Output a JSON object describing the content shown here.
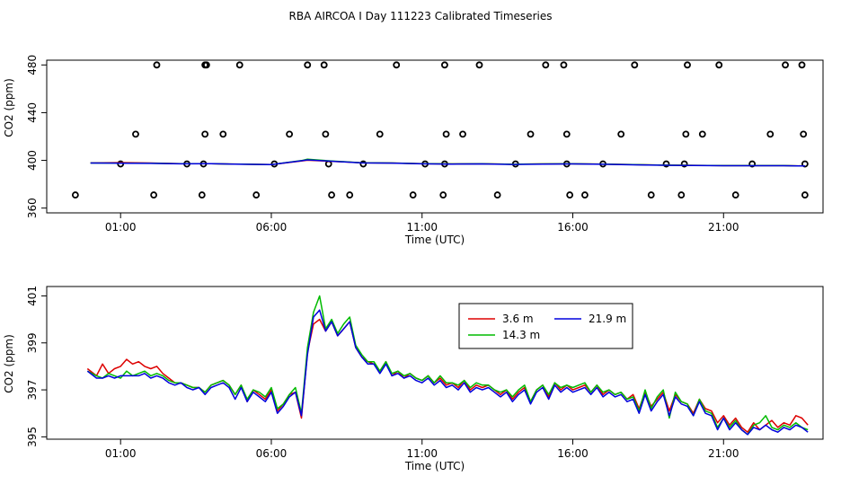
{
  "figure_title": "RBA AIRCOA I  Day 111223  Calibrated Timeseries",
  "chart_data": [
    {
      "type": "line",
      "xlabel": "Time (UTC)",
      "ylabel": "CO2 (ppm)",
      "xlim": [
        -1.45,
        24.3
      ],
      "ylim": [
        356,
        484
      ],
      "xticks": [
        {
          "value": 1,
          "label": "01:00"
        },
        {
          "value": 6,
          "label": "06:00"
        },
        {
          "value": 11,
          "label": "11:00"
        },
        {
          "value": 16,
          "label": "16:00"
        },
        {
          "value": 21,
          "label": "21:00"
        }
      ],
      "yticks": [
        {
          "value": 360,
          "label": "360"
        },
        {
          "value": 400,
          "label": "400"
        },
        {
          "value": 440,
          "label": "440"
        },
        {
          "value": 480,
          "label": "480"
        }
      ],
      "grid": false,
      "series": [
        {
          "color": "#dd0000",
          "x": [
            0,
            1,
            2,
            3,
            4,
            5,
            6,
            7,
            7.2,
            8,
            9,
            10,
            11,
            12,
            13,
            14,
            15,
            16,
            17,
            18,
            19,
            20,
            21,
            22,
            23,
            23.7
          ],
          "values": [
            397.9,
            398.2,
            397.8,
            397.2,
            397.2,
            396.8,
            396.5,
            399.5,
            400.1,
            399.2,
            398.0,
            397.8,
            397.2,
            397.0,
            397.1,
            396.7,
            397.0,
            397.1,
            396.8,
            396.4,
            396.0,
            395.8,
            395.6,
            395.6,
            395.6,
            395.3
          ]
        },
        {
          "color": "#00bb00",
          "x": [
            0,
            1,
            2,
            3,
            4,
            5,
            6,
            7,
            7.2,
            8,
            9,
            10,
            11,
            12,
            13,
            14,
            15,
            16,
            17,
            18,
            19,
            20,
            21,
            22,
            23,
            23.7
          ],
          "values": [
            397.8,
            397.7,
            397.6,
            397.2,
            397.2,
            396.8,
            396.5,
            399.8,
            401.0,
            399.5,
            398.0,
            397.8,
            397.2,
            397.0,
            397.1,
            396.7,
            397.0,
            397.1,
            396.8,
            396.4,
            396.0,
            395.8,
            395.6,
            395.6,
            395.6,
            395.3
          ]
        },
        {
          "color": "#0000dd",
          "x": [
            0,
            1,
            2,
            3,
            4,
            5,
            6,
            7,
            7.2,
            8,
            9,
            10,
            11,
            12,
            13,
            14,
            15,
            16,
            17,
            18,
            19,
            20,
            21,
            22,
            23,
            23.7
          ],
          "values": [
            397.8,
            397.6,
            397.5,
            397.1,
            397.2,
            396.7,
            396.4,
            399.7,
            400.4,
            399.3,
            397.9,
            397.7,
            397.1,
            396.9,
            397.0,
            396.6,
            396.9,
            397.0,
            396.7,
            396.3,
            395.9,
            395.7,
            395.5,
            395.5,
            395.5,
            395.3
          ]
        }
      ],
      "points": {
        "color": "#000000",
        "x": [
          -0.5,
          1.0,
          1.5,
          2.1,
          2.2,
          3.2,
          3.7,
          3.75,
          3.8,
          3.8,
          3.85,
          4.4,
          4.95,
          5.5,
          6.1,
          6.6,
          7.2,
          7.75,
          7.8,
          7.9,
          8.0,
          8.6,
          9.05,
          9.6,
          10.15,
          10.7,
          11.1,
          11.7,
          11.75,
          11.8,
          11.75,
          12.35,
          12.9,
          13.5,
          14.1,
          14.6,
          15.1,
          15.7,
          15.8,
          15.8,
          15.9,
          16.4,
          17.0,
          17.6,
          18.05,
          18.6,
          19.1,
          19.6,
          19.7,
          19.75,
          19.8,
          20.3,
          20.85,
          21.4,
          21.95,
          22.55,
          23.05,
          23.6,
          23.65,
          23.7,
          23.7
        ],
        "values": [
          371,
          397,
          422,
          371,
          480,
          397,
          371,
          397,
          422,
          480,
          480,
          422,
          480,
          371,
          397,
          422,
          480,
          480,
          422,
          397,
          371,
          371,
          397,
          422,
          480,
          371,
          397,
          371,
          397,
          422,
          480,
          422,
          480,
          371,
          397,
          422,
          480,
          480,
          422,
          397,
          371,
          371,
          397,
          422,
          480,
          371,
          397,
          371,
          397,
          422,
          480,
          422,
          480,
          371,
          397,
          422,
          480,
          480,
          422,
          397,
          371
        ]
      }
    },
    {
      "type": "line",
      "xlabel": "Time (UTC)",
      "ylabel": "CO2 (ppm)",
      "xlim": [
        -1.45,
        24.3
      ],
      "ylim": [
        394.9,
        401.4
      ],
      "xticks": [
        {
          "value": 1,
          "label": "01:00"
        },
        {
          "value": 6,
          "label": "06:00"
        },
        {
          "value": 11,
          "label": "11:00"
        },
        {
          "value": 16,
          "label": "16:00"
        },
        {
          "value": 21,
          "label": "21:00"
        }
      ],
      "yticks": [
        {
          "value": 395,
          "label": "395"
        },
        {
          "value": 397,
          "label": "397"
        },
        {
          "value": 399,
          "label": "399"
        },
        {
          "value": 401,
          "label": "401"
        }
      ],
      "legend_position": "top-right",
      "grid": false,
      "x": [
        -0.1,
        0.2,
        0.4,
        0.6,
        0.8,
        1.0,
        1.2,
        1.4,
        1.6,
        1.8,
        2.0,
        2.2,
        2.4,
        2.6,
        2.8,
        3.0,
        3.2,
        3.4,
        3.6,
        3.8,
        4.0,
        4.2,
        4.4,
        4.6,
        4.8,
        5.0,
        5.2,
        5.4,
        5.6,
        5.8,
        6.0,
        6.2,
        6.4,
        6.6,
        6.8,
        7.0,
        7.2,
        7.4,
        7.6,
        7.8,
        8.0,
        8.2,
        8.4,
        8.6,
        8.8,
        9.0,
        9.2,
        9.4,
        9.6,
        9.8,
        10.0,
        10.2,
        10.4,
        10.6,
        10.8,
        11.0,
        11.2,
        11.4,
        11.6,
        11.8,
        12.0,
        12.2,
        12.4,
        12.6,
        12.8,
        13.0,
        13.2,
        13.4,
        13.6,
        13.8,
        14.0,
        14.2,
        14.4,
        14.6,
        14.8,
        15.0,
        15.2,
        15.4,
        15.6,
        15.8,
        16.0,
        16.2,
        16.4,
        16.6,
        16.8,
        17.0,
        17.2,
        17.4,
        17.6,
        17.8,
        18.0,
        18.2,
        18.4,
        18.6,
        18.8,
        19.0,
        19.2,
        19.4,
        19.6,
        19.8,
        20.0,
        20.2,
        20.4,
        20.6,
        20.8,
        21.0,
        21.2,
        21.4,
        21.6,
        21.8,
        22.0,
        22.2,
        22.4,
        22.6,
        22.8,
        23.0,
        23.2,
        23.4,
        23.6,
        23.8
      ],
      "series": [
        {
          "name": "3.6 m",
          "color": "#dd0000",
          "values": [
            397.9,
            397.6,
            398.1,
            397.7,
            397.9,
            398.0,
            398.3,
            398.1,
            398.2,
            398.0,
            397.9,
            398.0,
            397.7,
            397.5,
            397.3,
            397.3,
            397.2,
            397.1,
            397.1,
            396.9,
            397.2,
            397.3,
            397.4,
            397.2,
            396.8,
            397.2,
            396.5,
            397.0,
            396.8,
            396.6,
            397.0,
            396.1,
            396.4,
            396.8,
            396.9,
            395.8,
            398.6,
            399.8,
            400.0,
            399.5,
            399.9,
            399.3,
            399.6,
            399.9,
            398.8,
            398.4,
            398.2,
            398.1,
            397.8,
            398.2,
            397.6,
            397.8,
            397.5,
            397.7,
            397.5,
            397.4,
            397.6,
            397.3,
            397.5,
            397.2,
            397.3,
            397.1,
            397.4,
            397.0,
            397.2,
            397.1,
            397.2,
            397.0,
            396.8,
            397.0,
            396.6,
            396.9,
            397.1,
            396.5,
            397.0,
            397.2,
            396.7,
            397.3,
            397.0,
            397.2,
            397.0,
            397.1,
            397.2,
            396.9,
            397.2,
            396.8,
            397.0,
            396.8,
            396.9,
            396.6,
            396.8,
            396.2,
            396.9,
            396.3,
            396.6,
            396.9,
            396.1,
            396.8,
            396.5,
            396.4,
            396.0,
            396.6,
            396.2,
            396.1,
            395.6,
            395.9,
            395.5,
            395.8,
            395.4,
            395.2,
            395.6,
            395.3,
            395.5,
            395.7,
            395.4,
            395.6,
            395.5,
            395.9,
            395.8,
            395.5
          ]
        },
        {
          "name": "14.3 m",
          "color": "#00bb00",
          "values": [
            397.8,
            397.6,
            397.5,
            397.7,
            397.6,
            397.5,
            397.8,
            397.6,
            397.7,
            397.8,
            397.6,
            397.7,
            397.6,
            397.4,
            397.3,
            397.3,
            397.2,
            397.1,
            397.1,
            396.9,
            397.2,
            397.3,
            397.4,
            397.2,
            396.8,
            397.2,
            396.6,
            397.0,
            396.9,
            396.7,
            397.1,
            396.2,
            396.4,
            396.8,
            397.1,
            396.0,
            398.8,
            400.3,
            401.0,
            399.6,
            400.0,
            399.4,
            399.8,
            400.1,
            398.9,
            398.5,
            398.2,
            398.2,
            397.8,
            398.2,
            397.7,
            397.8,
            397.6,
            397.7,
            397.5,
            397.4,
            397.6,
            397.3,
            397.6,
            397.3,
            397.3,
            397.2,
            397.4,
            397.1,
            397.3,
            397.2,
            397.2,
            397.0,
            396.9,
            397.0,
            396.7,
            397.0,
            397.2,
            396.5,
            397.0,
            397.2,
            396.8,
            397.3,
            397.1,
            397.2,
            397.1,
            397.2,
            397.3,
            396.9,
            397.2,
            396.9,
            397.0,
            396.8,
            396.9,
            396.6,
            396.7,
            396.1,
            397.0,
            396.2,
            396.7,
            397.0,
            395.8,
            396.9,
            396.5,
            396.4,
            395.9,
            396.6,
            396.1,
            396.0,
            395.4,
            395.8,
            395.4,
            395.7,
            395.3,
            395.1,
            395.5,
            395.6,
            395.9,
            395.4,
            395.3,
            395.5,
            395.4,
            395.6,
            395.4,
            395.3
          ]
        },
        {
          "name": "21.9 m",
          "color": "#0000dd",
          "values": [
            397.8,
            397.5,
            397.5,
            397.6,
            397.5,
            397.6,
            397.6,
            397.6,
            397.6,
            397.7,
            397.5,
            397.6,
            397.5,
            397.3,
            397.2,
            397.3,
            397.1,
            397.0,
            397.1,
            396.8,
            397.1,
            397.2,
            397.3,
            397.1,
            396.6,
            397.1,
            396.5,
            396.9,
            396.7,
            396.5,
            396.9,
            396.0,
            396.3,
            396.7,
            396.9,
            395.9,
            398.5,
            400.1,
            400.4,
            399.5,
            399.9,
            399.3,
            399.6,
            399.9,
            398.8,
            398.4,
            398.1,
            398.1,
            397.7,
            398.1,
            397.6,
            397.7,
            397.5,
            397.6,
            397.4,
            397.3,
            397.5,
            397.2,
            397.4,
            397.1,
            397.2,
            397.0,
            397.3,
            396.9,
            397.1,
            397.0,
            397.1,
            396.9,
            396.7,
            396.9,
            396.5,
            396.8,
            397.0,
            396.4,
            396.9,
            397.1,
            396.6,
            397.2,
            396.9,
            397.1,
            396.9,
            397.0,
            397.1,
            396.8,
            397.1,
            396.7,
            396.9,
            396.7,
            396.8,
            396.5,
            396.6,
            396.0,
            396.8,
            396.1,
            396.5,
            396.8,
            395.9,
            396.7,
            396.4,
            396.3,
            395.9,
            396.5,
            396.0,
            395.9,
            395.3,
            395.8,
            395.3,
            395.6,
            395.3,
            395.1,
            395.4,
            395.3,
            395.5,
            395.3,
            395.2,
            395.4,
            395.3,
            395.5,
            395.4,
            395.2
          ]
        }
      ]
    }
  ]
}
